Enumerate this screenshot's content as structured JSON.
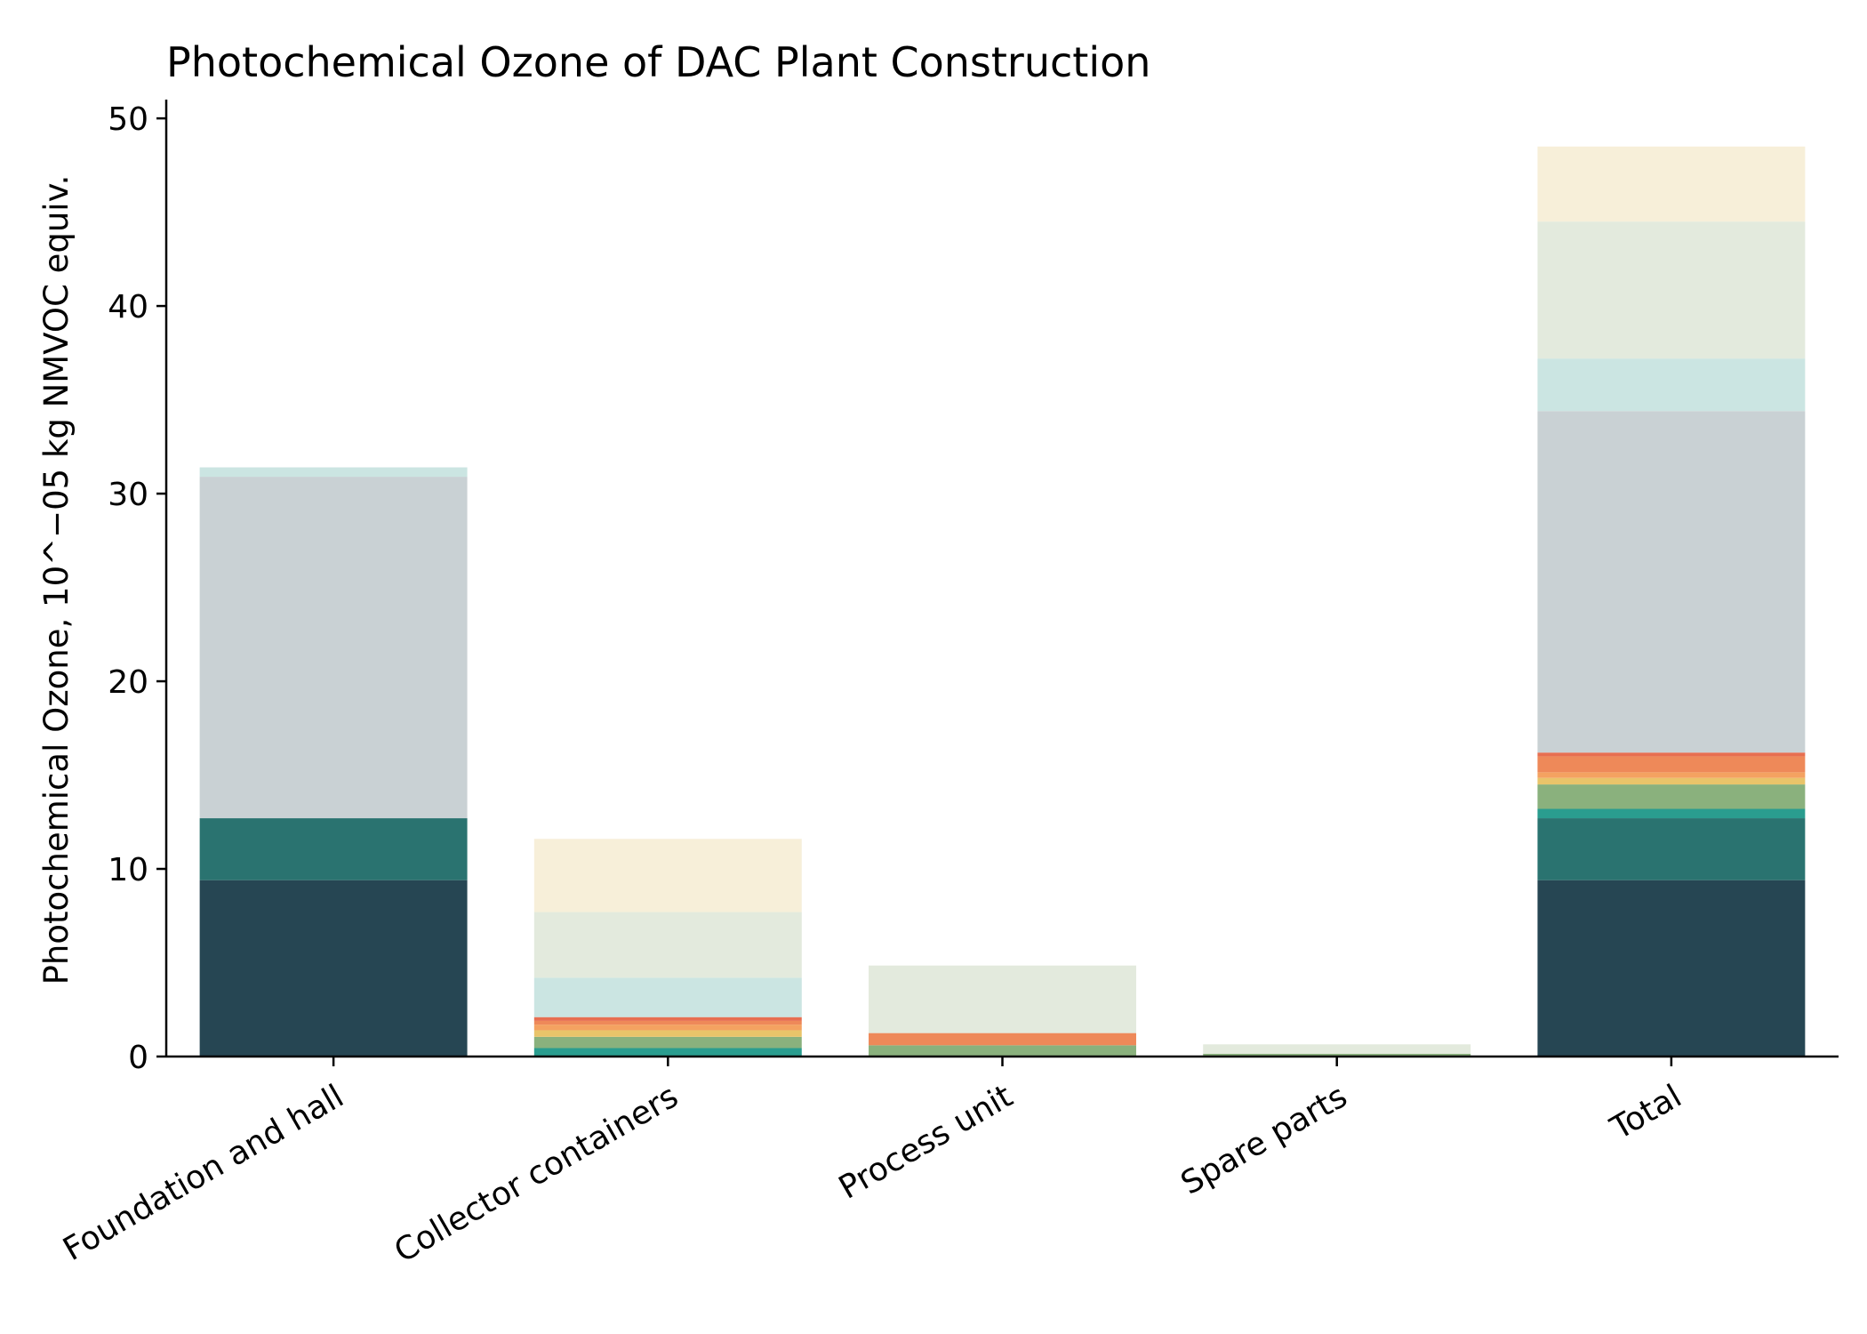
{
  "chart_data": {
    "type": "bar",
    "stacked": true,
    "title": "Photochemical Ozone of DAC Plant Construction",
    "xlabel": "",
    "ylabel": "Photochemical Ozone, 10^−05 kg NMVOC equiv.",
    "ylim": [
      0,
      51
    ],
    "yticks": [
      0,
      10,
      20,
      30,
      40,
      50
    ],
    "grid": false,
    "legend": "none",
    "categories": [
      "Foundation and hall",
      "Collector containers",
      "Process unit",
      "Spare parts",
      "Total"
    ],
    "series": [
      {
        "color": "#264653",
        "values": [
          9.4,
          0.0,
          0.0,
          0.0,
          9.4
        ]
      },
      {
        "color": "#2a7370",
        "values": [
          3.3,
          0.0,
          0.0,
          0.0,
          3.3
        ]
      },
      {
        "color": "#2a9d8f",
        "values": [
          0.0,
          0.45,
          0.0,
          0.05,
          0.5
        ]
      },
      {
        "color": "#8ab17d",
        "values": [
          0.0,
          0.6,
          0.6,
          0.1,
          1.3
        ]
      },
      {
        "color": "#e9c46a",
        "values": [
          0.0,
          0.35,
          0.0,
          0.0,
          0.35
        ]
      },
      {
        "color": "#f4a261",
        "values": [
          0.0,
          0.3,
          0.0,
          0.0,
          0.3
        ]
      },
      {
        "color": "#ee8959",
        "values": [
          0.0,
          0.2,
          0.65,
          0.0,
          0.85
        ]
      },
      {
        "color": "#e76f51",
        "values": [
          0.0,
          0.2,
          0.0,
          0.0,
          0.2
        ]
      },
      {
        "color": "#c9d1d4",
        "values": [
          18.2,
          0.0,
          0.0,
          0.0,
          18.2
        ]
      },
      {
        "color": "#cbe5e2",
        "values": [
          0.5,
          2.1,
          0.0,
          0.0,
          2.8
        ]
      },
      {
        "color": "#e3eadd",
        "values": [
          0.0,
          3.5,
          3.6,
          0.5,
          7.3
        ]
      },
      {
        "color": "#f7efd9",
        "values": [
          0.0,
          3.9,
          0.0,
          0.0,
          4.0
        ]
      }
    ]
  }
}
